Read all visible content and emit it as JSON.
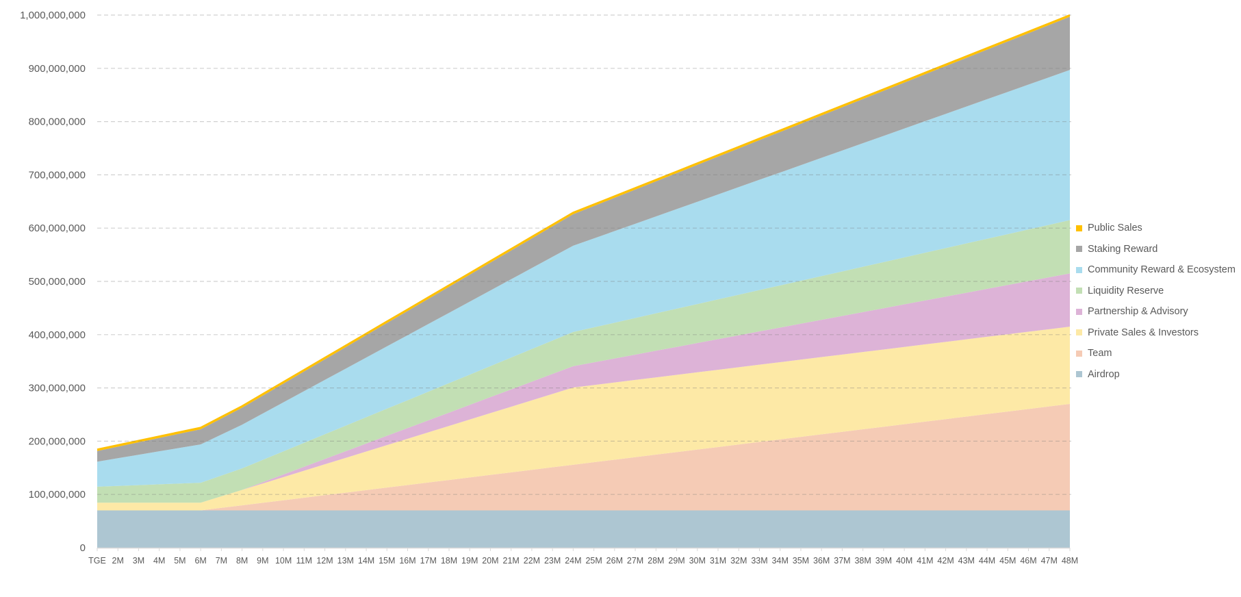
{
  "chart_data": {
    "type": "area",
    "stacked": true,
    "title": "",
    "xlabel": "",
    "ylabel": "",
    "value_unit_multiplier": 1000000,
    "ylim": [
      0,
      1000000000
    ],
    "y_ticks": [
      "0",
      "100,000,000",
      "200,000,000",
      "300,000,000",
      "400,000,000",
      "500,000,000",
      "600,000,000",
      "700,000,000",
      "800,000,000",
      "900,000,000",
      "1,000,000,000"
    ],
    "grid": "horizontal dashed",
    "legend_position": "right",
    "categories": [
      "TGE",
      "2M",
      "3M",
      "4M",
      "5M",
      "6M",
      "7M",
      "8M",
      "9M",
      "10M",
      "11M",
      "12M",
      "13M",
      "14M",
      "15M",
      "16M",
      "17M",
      "18M",
      "19M",
      "20M",
      "21M",
      "22M",
      "23M",
      "24M",
      "25M",
      "26M",
      "27M",
      "28M",
      "29M",
      "30M",
      "31M",
      "32M",
      "33M",
      "34M",
      "35M",
      "36M",
      "37M",
      "38M",
      "39M",
      "40M",
      "41M",
      "42M",
      "43M",
      "44M",
      "45M",
      "46M",
      "47M",
      "48M"
    ],
    "series": [
      {
        "name": "Airdrop",
        "color": "#adc6d2",
        "values": [
          70,
          70,
          70,
          70,
          70,
          70,
          70,
          70,
          70,
          70,
          70,
          70,
          70,
          70,
          70,
          70,
          70,
          70,
          70,
          70,
          70,
          70,
          70,
          70,
          70,
          70,
          70,
          70,
          70,
          70,
          70,
          70,
          70,
          70,
          70,
          70,
          70,
          70,
          70,
          70,
          70,
          70,
          70,
          70,
          70,
          70,
          70,
          70
        ]
      },
      {
        "name": "Team",
        "color": "#f5cbb5",
        "values": [
          0,
          0,
          0,
          0,
          0,
          0,
          4.8,
          9.5,
          14.3,
          19.0,
          23.8,
          28.6,
          33.3,
          38.1,
          42.9,
          47.6,
          52.4,
          57.1,
          61.9,
          66.7,
          71.4,
          76.2,
          81.0,
          85.7,
          90.5,
          95.2,
          100.0,
          104.8,
          109.5,
          114.3,
          119.0,
          123.8,
          128.6,
          133.3,
          138.1,
          142.9,
          147.6,
          152.4,
          157.1,
          161.9,
          166.7,
          171.4,
          176.2,
          181.0,
          185.7,
          190.5,
          195.2,
          200.0
        ]
      },
      {
        "name": "Private Sales & Investors",
        "color": "#fde9a6",
        "values": [
          14.5,
          14.5,
          14.5,
          14.5,
          14.5,
          14.5,
          21.75,
          29,
          36.25,
          43.5,
          50.75,
          58,
          65.25,
          72.5,
          79.75,
          87,
          94.25,
          101.5,
          108.75,
          116,
          123.25,
          130.5,
          137.75,
          145,
          145,
          145,
          145,
          145,
          145,
          145,
          145,
          145,
          145,
          145,
          145,
          145,
          145,
          145,
          145,
          145,
          145,
          145,
          145,
          145,
          145,
          145,
          145,
          145
        ]
      },
      {
        "name": "Partnership & Advisory",
        "color": "#ddb3d7",
        "values": [
          0,
          0,
          0,
          0,
          0,
          0,
          0,
          0,
          2.5,
          5,
          7.5,
          10,
          12.5,
          15,
          17.5,
          20,
          22.5,
          25,
          27.5,
          30,
          32.5,
          35,
          37.5,
          40,
          42.5,
          45,
          47.5,
          50,
          52.5,
          55,
          57.5,
          60,
          62.5,
          65,
          67.5,
          70,
          72.5,
          75,
          77.5,
          80,
          82.5,
          85,
          87.5,
          90,
          92.5,
          95,
          97.5,
          100
        ]
      },
      {
        "name": "Liquidity Reserve",
        "color": "#c2dfb4",
        "values": [
          30,
          31.5,
          33.0,
          34.5,
          36.0,
          37.4,
          38.9,
          40.4,
          41.9,
          43.4,
          44.9,
          46.4,
          47.9,
          49.4,
          50.9,
          52.3,
          53.8,
          55.3,
          56.8,
          58.3,
          59.8,
          61.3,
          62.8,
          64.3,
          65.7,
          67.2,
          68.7,
          70.2,
          71.7,
          73.2,
          74.7,
          76.2,
          77.7,
          79.1,
          80.6,
          82.1,
          83.6,
          85.1,
          86.6,
          88.1,
          89.6,
          91.1,
          92.6,
          94.0,
          95.5,
          97.0,
          98.5,
          100
        ]
      },
      {
        "name": "Community Reward & Ecosystem",
        "color": "#a9dcee",
        "values": [
          47,
          52,
          57,
          62,
          67,
          72,
          77,
          82,
          87,
          92,
          97,
          102,
          107,
          112,
          117,
          122,
          127,
          132,
          137,
          142,
          147,
          152,
          157,
          162,
          167,
          172,
          177,
          182,
          187,
          192,
          197,
          202,
          207,
          212,
          217,
          222,
          227,
          232,
          237,
          242,
          247,
          252,
          257,
          262,
          267,
          272,
          277,
          282
        ]
      },
      {
        "name": "Staking Reward",
        "color": "#a6a6a6",
        "values": [
          20,
          21.7,
          23.4,
          25.1,
          26.8,
          28.5,
          30.2,
          31.9,
          33.6,
          35.3,
          37,
          38.7,
          40.4,
          42.1,
          43.8,
          45.5,
          47.2,
          48.9,
          50.6,
          52.3,
          54,
          55.7,
          57.4,
          59.1,
          60.8,
          62.5,
          64.2,
          65.9,
          67.6,
          69.3,
          71,
          72.7,
          74.4,
          76.1,
          77.8,
          79.5,
          81.2,
          82.9,
          84.6,
          86.3,
          88,
          89.7,
          91.4,
          93.1,
          94.8,
          96.5,
          98.2,
          99.9
        ]
      },
      {
        "name": "Public Sales",
        "color": "#ffc000",
        "values": [
          3,
          3,
          3,
          3,
          3,
          3,
          3,
          3,
          3,
          3,
          3,
          3,
          3,
          3,
          3,
          3,
          3,
          3,
          3,
          3,
          3,
          3,
          3,
          3,
          3,
          3,
          3,
          3,
          3,
          3,
          3,
          3,
          3,
          3,
          3,
          3,
          3,
          3,
          3,
          3,
          3,
          3,
          3,
          3,
          3,
          3,
          3,
          3
        ]
      }
    ],
    "legend_order": [
      "Public Sales",
      "Staking Reward",
      "Community Reward & Ecosystem",
      "Liquidity Reserve",
      "Partnership & Advisory",
      "Private Sales & Investors",
      "Team",
      "Airdrop"
    ]
  }
}
